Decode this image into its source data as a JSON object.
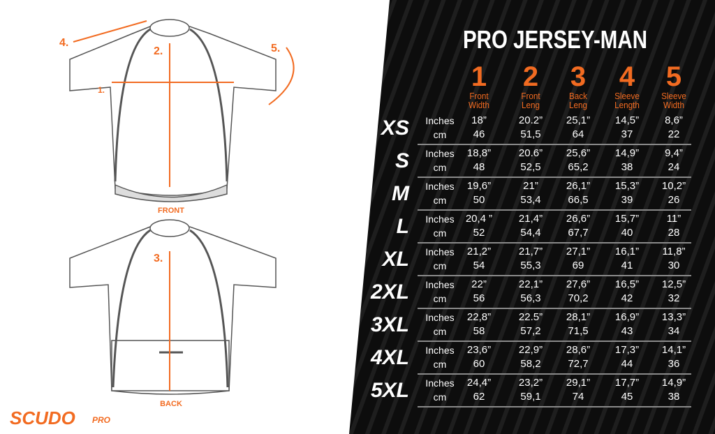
{
  "title": "PRO JERSEY-MAN",
  "brand": {
    "name": "SCUDO",
    "suffix": "PRO"
  },
  "colors": {
    "accent": "#f26b21",
    "background_dark": "#0d0d0d",
    "text": "#ffffff"
  },
  "diagram": {
    "front_label": "FRONT",
    "back_label": "BACK",
    "markers": [
      "1.",
      "2.",
      "3.",
      "4.",
      "5."
    ]
  },
  "columns": [
    {
      "number": "1",
      "line1": "Front",
      "line2": "Width"
    },
    {
      "number": "2",
      "line1": "Front",
      "line2": "Leng"
    },
    {
      "number": "3",
      "line1": "Back",
      "line2": "Leng"
    },
    {
      "number": "4",
      "line1": "Sleeve",
      "line2": "Length"
    },
    {
      "number": "5",
      "line1": "Sleeve",
      "line2": "Width"
    }
  ],
  "units": {
    "inches": "Inches",
    "cm": "cm"
  },
  "rows": [
    {
      "size": "XS",
      "inches": [
        "18”",
        "20.2”",
        "25,1”",
        "14,5”",
        "8,6”"
      ],
      "cm": [
        "46",
        "51,5",
        "64",
        "37",
        "22"
      ]
    },
    {
      "size": "S",
      "inches": [
        "18,8”",
        "20.6”",
        "25,6”",
        "14,9”",
        "9,4”"
      ],
      "cm": [
        "48",
        "52,5",
        "65,2",
        "38",
        "24"
      ]
    },
    {
      "size": "M",
      "inches": [
        "19,6”",
        "21”",
        "26,1”",
        "15,3”",
        "10,2”"
      ],
      "cm": [
        "50",
        "53,4",
        "66,5",
        "39",
        "26"
      ]
    },
    {
      "size": "L",
      "inches": [
        "20,4 ”",
        "21,4”",
        "26,6”",
        "15,7”",
        "11”"
      ],
      "cm": [
        "52",
        "54,4",
        "67,7",
        "40",
        "28"
      ]
    },
    {
      "size": "XL",
      "inches": [
        "21,2”",
        "21,7”",
        "27,1”",
        "16,1”",
        "11,8”"
      ],
      "cm": [
        "54",
        "55,3",
        "69",
        "41",
        "30"
      ]
    },
    {
      "size": "2XL",
      "inches": [
        "22”",
        "22,1”",
        "27,6”",
        "16,5”",
        "12,5”"
      ],
      "cm": [
        "56",
        "56,3",
        "70,2",
        "42",
        "32"
      ]
    },
    {
      "size": "3XL",
      "inches": [
        "22,8”",
        "22.5”",
        "28,1”",
        "16,9”",
        "13,3”"
      ],
      "cm": [
        "58",
        "57,2",
        "71,5",
        "43",
        "34"
      ]
    },
    {
      "size": "4XL",
      "inches": [
        "23,6”",
        "22,9”",
        "28,6”",
        "17,3”",
        "14,1”"
      ],
      "cm": [
        "60",
        "58,2",
        "72,7",
        "44",
        "36"
      ]
    },
    {
      "size": "5XL",
      "inches": [
        "24,4”",
        "23,2”",
        "29,1”",
        "17,7”",
        "14,9”"
      ],
      "cm": [
        "62",
        "59,1",
        "74",
        "45",
        "38"
      ]
    }
  ]
}
